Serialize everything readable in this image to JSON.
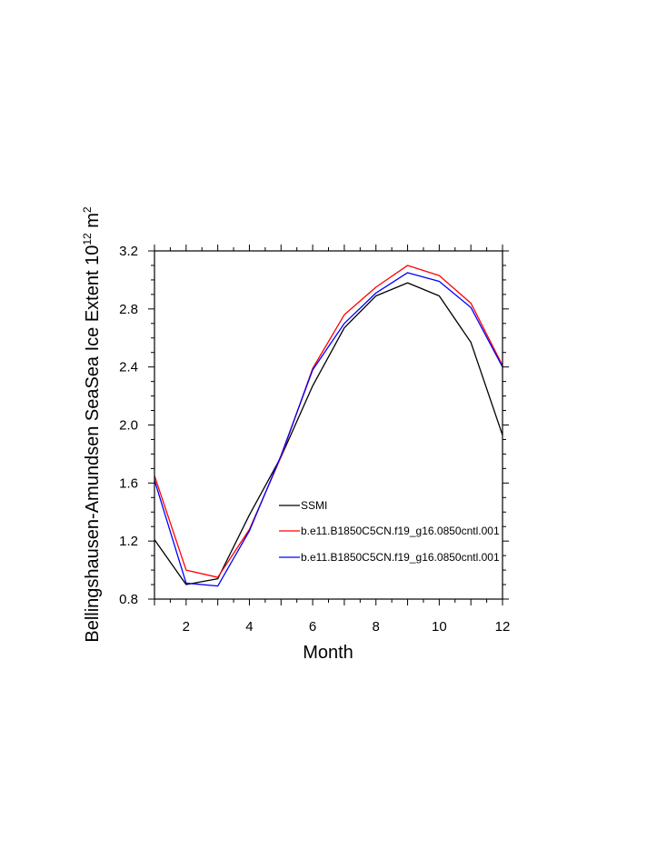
{
  "chart_data": {
    "type": "line",
    "xlabel": "Month",
    "ylabel": {
      "main": "Bellingshausen-Amundsen SeaSea Ice Extent 10",
      "exp": "12",
      "unit": " m",
      "unit_exp": "2"
    },
    "xlim": [
      1,
      12
    ],
    "ylim": [
      0.8,
      3.2
    ],
    "xticks": [
      2,
      4,
      6,
      8,
      10,
      12
    ],
    "yticks": [
      0.8,
      1.2,
      1.6,
      2.0,
      2.4,
      2.8,
      3.2
    ],
    "grid": false,
    "legend_position": "inside, lower-middle",
    "x": [
      1,
      2,
      3,
      4,
      5,
      6,
      7,
      8,
      9,
      10,
      11,
      12
    ],
    "series": [
      {
        "name": "SSMI",
        "color": "#000000",
        "values": [
          1.21,
          0.9,
          0.94,
          1.38,
          1.78,
          2.27,
          2.67,
          2.89,
          2.98,
          2.89,
          2.57,
          1.93
        ]
      },
      {
        "name": "b.e11.B1850C5CN.f19_g16.0850cntl.001",
        "color": "#ff0000",
        "values": [
          1.65,
          1.0,
          0.95,
          1.28,
          1.78,
          2.39,
          2.76,
          2.95,
          3.1,
          3.03,
          2.84,
          2.41
        ]
      },
      {
        "name": "b.e11.B1850C5CN.f19_g16.0850cntl.001",
        "color": "#0000ff",
        "values": [
          1.62,
          0.91,
          0.89,
          1.27,
          1.79,
          2.38,
          2.7,
          2.91,
          3.05,
          2.99,
          2.81,
          2.4
        ]
      }
    ]
  }
}
